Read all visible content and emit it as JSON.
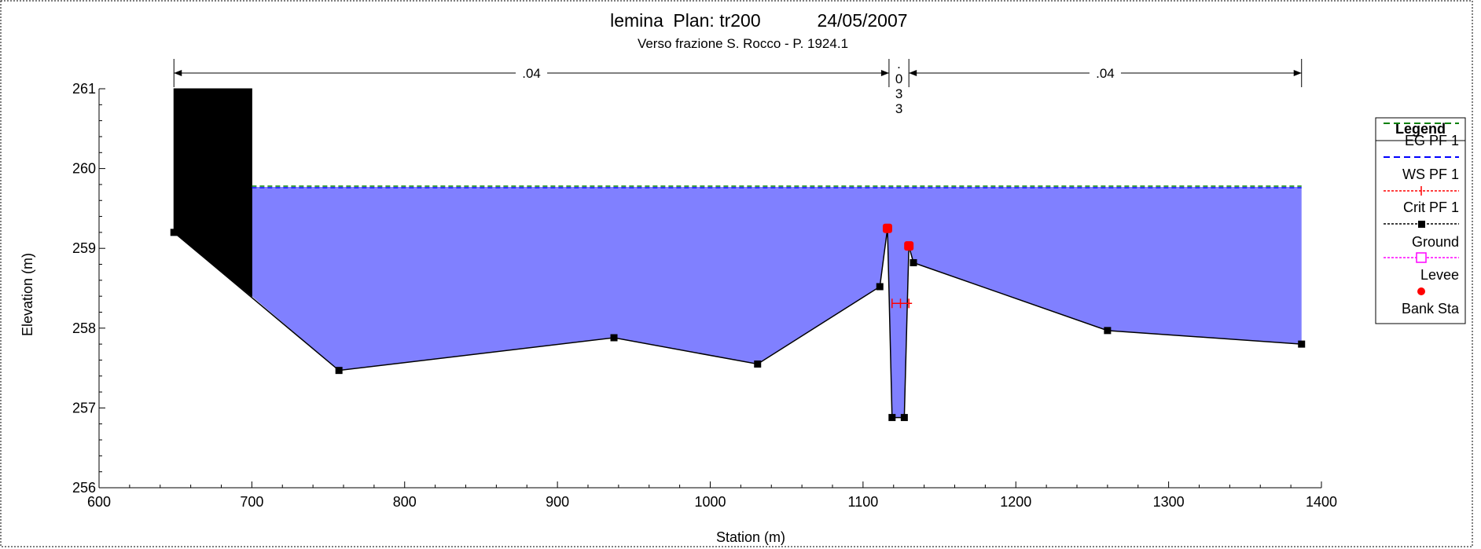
{
  "chart_data": {
    "type": "line",
    "title_parts": [
      "lemina",
      "Plan: tr200",
      "24/05/2007"
    ],
    "subtitle": "Verso frazione S. Rocco - P. 1924.1",
    "xlabel": "Station (m)",
    "ylabel": "Elevation (m)",
    "xlim": [
      600,
      1400
    ],
    "ylim": [
      256,
      261
    ],
    "x_ticks": [
      "600",
      "700",
      "800",
      "900",
      "1000",
      "1100",
      "1200",
      "1300",
      "1400"
    ],
    "y_ticks": [
      "256",
      "257",
      "258",
      "259",
      "260",
      "261"
    ],
    "mannings_n": [
      {
        "label": ".04",
        "from": 649,
        "to": 1117
      },
      {
        "label_lines": [
          ".",
          "0",
          "3",
          "3"
        ],
        "from": 1117,
        "to": 1130
      },
      {
        "label": ".04",
        "from": 1130,
        "to": 1387
      }
    ],
    "ground": {
      "name": "Ground",
      "points": [
        [
          649,
          259.2
        ],
        [
          757,
          257.47
        ],
        [
          937,
          257.88
        ],
        [
          1031,
          257.55
        ],
        [
          1111,
          258.52
        ],
        [
          1116,
          259.25
        ],
        [
          1119,
          256.88
        ],
        [
          1127,
          256.88
        ],
        [
          1130,
          259.03
        ],
        [
          1133,
          258.82
        ],
        [
          1260,
          257.97
        ],
        [
          1387,
          257.8
        ]
      ]
    },
    "obstruction": {
      "x_from": 649,
      "x_to": 700,
      "top": 261,
      "ground_at_right": 258.4
    },
    "ws_pf1": {
      "name": "WS PF 1",
      "value": 259.77,
      "from": 700,
      "to": 1387,
      "fill": "#8080ff"
    },
    "eg_pf1": {
      "name": "EG PF 1",
      "value": 259.78,
      "from": 700,
      "to": 1387
    },
    "crit_pf1": {
      "name": "Crit PF 1",
      "value": 258.31,
      "from": 1119,
      "to": 1130
    },
    "bank_sta": {
      "name": "Bank Sta",
      "points": [
        [
          1116,
          259.25
        ],
        [
          1130,
          259.03
        ]
      ]
    },
    "legend": {
      "title": "Legend",
      "placement": "right",
      "entries": [
        {
          "name": "EG PF 1",
          "style": "dash",
          "color": "#008000"
        },
        {
          "name": "WS PF 1",
          "style": "dash",
          "color": "#0000ff"
        },
        {
          "name": "Crit PF 1",
          "style": "plus",
          "color": "#ff0000"
        },
        {
          "name": "Ground",
          "style": "square",
          "color": "#000000"
        },
        {
          "name": "Levee",
          "style": "open-square",
          "color": "#ff00ff"
        },
        {
          "name": "Bank Sta",
          "style": "dot",
          "color": "#ff0000"
        }
      ]
    }
  }
}
